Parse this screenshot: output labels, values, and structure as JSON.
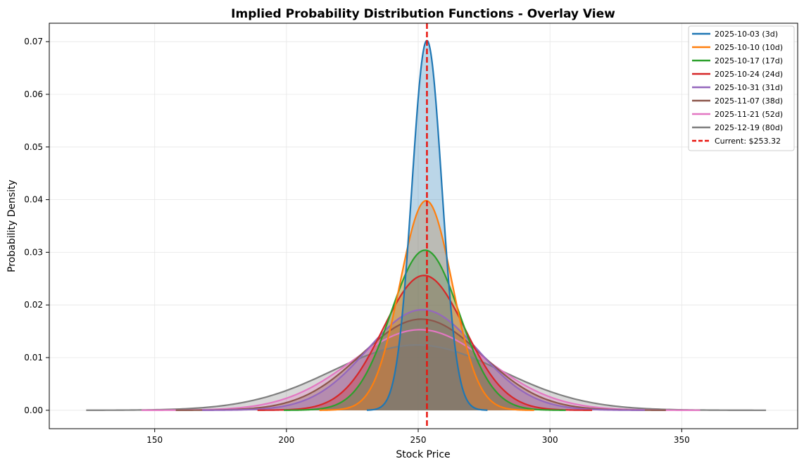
{
  "chart_data": {
    "type": "area",
    "title": "Implied Probability Distribution Functions - Overlay View",
    "xlabel": "Stock Price",
    "ylabel": "Probability Density",
    "xlim": [
      110,
      394
    ],
    "ylim": [
      -0.0035,
      0.0735
    ],
    "xticks": [
      150,
      200,
      250,
      300,
      350
    ],
    "xtick_labels": [
      "150",
      "200",
      "250",
      "300",
      "350"
    ],
    "yticks": [
      0,
      0.01,
      0.02,
      0.03,
      0.04,
      0.05,
      0.06,
      0.07
    ],
    "ytick_labels": [
      "0.00",
      "0.01",
      "0.02",
      "0.03",
      "0.04",
      "0.05",
      "0.06",
      "0.07"
    ],
    "grid": true,
    "legend_position": "top-right",
    "current_price": 253.32,
    "current_label": "Current: $253.32",
    "series": [
      {
        "name": "2025-10-03 (3d)",
        "color": "#1f77b4",
        "mu": 253.3,
        "sigma": 5.68,
        "peak": 0.0702,
        "x_range": [
          230.5,
          276.3
        ]
      },
      {
        "name": "2025-10-10 (10d)",
        "color": "#ff7f0e",
        "mu": 253.0,
        "sigma": 9.9,
        "peak": 0.0398,
        "x_range": [
          212.5,
          294.0
        ]
      },
      {
        "name": "2025-10-17 (17d)",
        "color": "#2ca02c",
        "mu": 252.6,
        "sigma": 13.0,
        "peak": 0.0304,
        "x_range": [
          199.0,
          306.0
        ]
      },
      {
        "name": "2025-10-24 (24d)",
        "color": "#d62728",
        "mu": 252.2,
        "sigma": 15.5,
        "peak": 0.0256,
        "x_range": [
          189.0,
          316.0
        ]
      },
      {
        "name": "2025-10-31 (31d)",
        "color": "#9467bd",
        "mu": 251.6,
        "sigma": 20.8,
        "peak": 0.0191,
        "x_range": [
          168.0,
          336.0
        ]
      },
      {
        "name": "2025-11-07 (38d)",
        "color": "#8c564b",
        "mu": 251.2,
        "sigma": 23.0,
        "peak": 0.0173,
        "x_range": [
          158.0,
          344.0
        ]
      },
      {
        "name": "2025-11-21 (52d)",
        "color": "#e377c2",
        "mu": 250.7,
        "sigma": 26.0,
        "peak": 0.0153,
        "x_range": [
          145.0,
          357.0
        ]
      },
      {
        "name": "2025-12-19 (80d)",
        "color": "#7f7f7f",
        "mu": 249.5,
        "sigma": 32.0,
        "peak": 0.0124,
        "x_range": [
          124.0,
          382.0
        ]
      }
    ]
  }
}
